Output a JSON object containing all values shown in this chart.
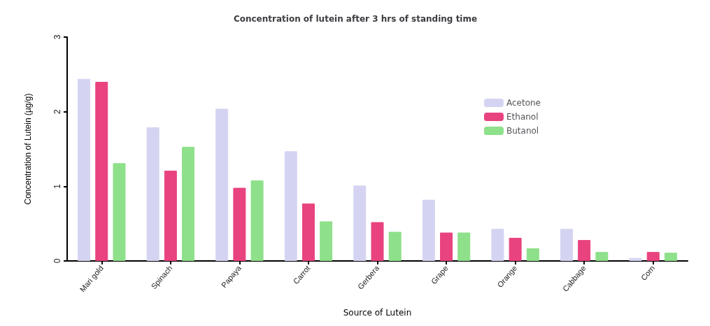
{
  "chart_data": {
    "type": "bar",
    "title": "Concentration of lutein after 3 hrs of standing time",
    "xlabel": "Source of Lutein",
    "ylabel": "Concentration of Lutein (µg/g)",
    "categories": [
      "Mari gold",
      "Spinach",
      "Papaya",
      "Carrot",
      "Gerbera",
      "Grape",
      "Orange",
      "Cabbage",
      "Corn"
    ],
    "series": [
      {
        "name": "Acetone",
        "color": "#d4d4f2",
        "values": [
          2.44,
          1.79,
          2.04,
          1.47,
          1.01,
          0.82,
          0.43,
          0.43,
          0.04
        ]
      },
      {
        "name": "Ethanol",
        "color": "#e8437f",
        "values": [
          2.4,
          1.21,
          0.98,
          0.77,
          0.52,
          0.38,
          0.31,
          0.28,
          0.12
        ]
      },
      {
        "name": "Butanol",
        "color": "#8ee08a",
        "values": [
          1.31,
          1.53,
          1.08,
          0.53,
          0.39,
          0.38,
          0.17,
          0.12,
          0.11
        ]
      }
    ],
    "ylim": [
      0,
      3
    ],
    "yticks": [
      0,
      1,
      2,
      3
    ],
    "grid": false,
    "legend": "top right"
  }
}
